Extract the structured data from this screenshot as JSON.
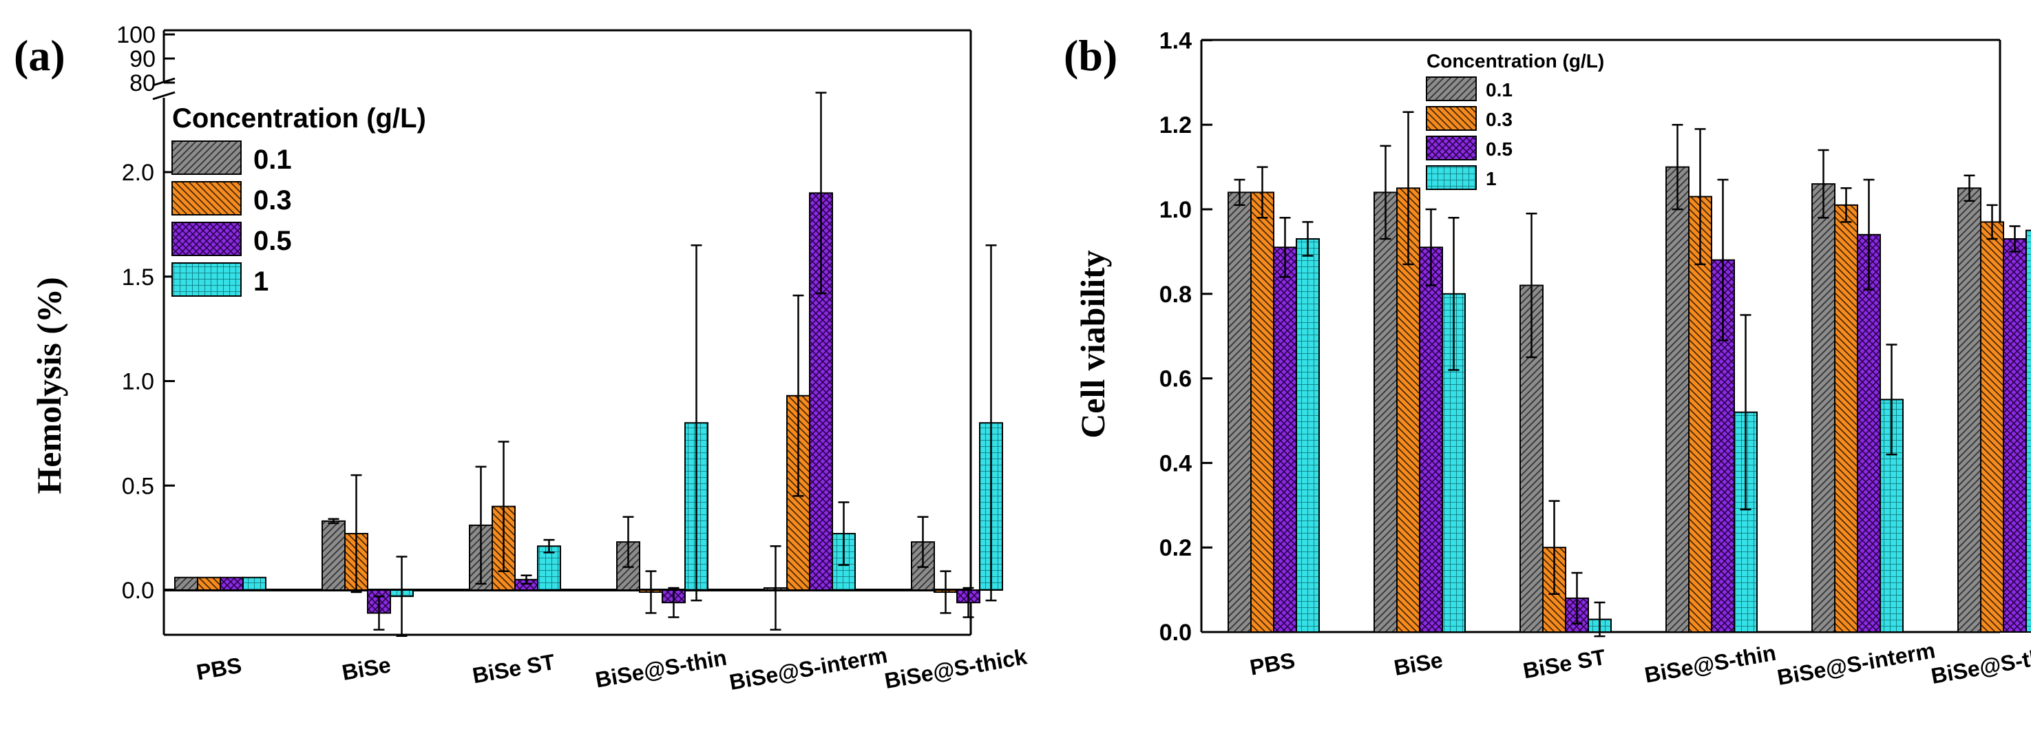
{
  "colors": {
    "0.1": "#8c8c8c",
    "0.3": "#f58a1f",
    "0.5": "#8a2be2",
    "1": "#35e0e6"
  },
  "chart_data": [
    {
      "type": "bar",
      "panel_label": "(a)",
      "title": "",
      "xlabel": "",
      "ylabel": "Hemolysis (%)",
      "ylim": [
        -0.25,
        2.55
      ],
      "break_ticks": [
        "80",
        "90",
        "100"
      ],
      "yticks": [
        "0.0",
        "0.5",
        "1.0",
        "1.5",
        "2.0"
      ],
      "ytick_values": [
        0.0,
        0.5,
        1.0,
        1.5,
        2.0
      ],
      "legend_title": "Concentration (g/L)",
      "legend_position": "top-left",
      "categories": [
        "PBS",
        "BiSe",
        "BiSe ST",
        "BiSe@S-thin",
        "BiSe@S-interm",
        "BiSe@S-thick"
      ],
      "series": [
        {
          "name": "0.1",
          "values": [
            0.06,
            0.33,
            0.31,
            0.23,
            0.01,
            0.23
          ],
          "errors": [
            0.0,
            0.01,
            0.28,
            0.12,
            0.2,
            0.12
          ]
        },
        {
          "name": "0.3",
          "values": [
            0.06,
            0.27,
            0.4,
            -0.01,
            0.93,
            -0.01
          ],
          "errors": [
            0.0,
            0.28,
            0.31,
            0.1,
            0.48,
            0.1
          ]
        },
        {
          "name": "0.5",
          "values": [
            0.06,
            -0.11,
            0.05,
            -0.06,
            1.9,
            -0.06
          ],
          "errors": [
            0.0,
            0.08,
            0.02,
            0.07,
            0.48,
            0.07
          ]
        },
        {
          "name": "1",
          "values": [
            0.06,
            -0.03,
            0.21,
            0.8,
            0.27,
            0.8
          ],
          "errors": [
            0.0,
            0.19,
            0.03,
            0.85,
            0.15,
            0.85
          ]
        }
      ]
    },
    {
      "type": "bar",
      "panel_label": "(b)",
      "title": "",
      "xlabel": "",
      "ylabel": "Cell viability",
      "ylim": [
        0.0,
        1.4
      ],
      "yticks": [
        "0.0",
        "0.2",
        "0.4",
        "0.6",
        "0.8",
        "1.0",
        "1.2",
        "1.4"
      ],
      "ytick_values": [
        0.0,
        0.2,
        0.4,
        0.6,
        0.8,
        1.0,
        1.2,
        1.4
      ],
      "legend_title": "Concentration (g/L)",
      "legend_position": "top-center",
      "categories": [
        "PBS",
        "BiSe",
        "BiSe ST",
        "BiSe@S-thin",
        "BiSe@S-interm",
        "BiSe@S-thick"
      ],
      "series": [
        {
          "name": "0.1",
          "values": [
            1.04,
            1.04,
            0.82,
            1.1,
            1.06,
            1.05
          ],
          "errors": [
            0.03,
            0.11,
            0.17,
            0.1,
            0.08,
            0.03
          ]
        },
        {
          "name": "0.3",
          "values": [
            1.04,
            1.05,
            0.2,
            1.03,
            1.01,
            0.97
          ],
          "errors": [
            0.06,
            0.18,
            0.11,
            0.16,
            0.04,
            0.04
          ]
        },
        {
          "name": "0.5",
          "values": [
            0.91,
            0.91,
            0.08,
            0.88,
            0.94,
            0.93
          ],
          "errors": [
            0.07,
            0.09,
            0.06,
            0.19,
            0.13,
            0.03
          ]
        },
        {
          "name": "1",
          "values": [
            0.93,
            0.8,
            0.03,
            0.52,
            0.55,
            0.95
          ],
          "errors": [
            0.04,
            0.18,
            0.04,
            0.23,
            0.13,
            0.06
          ]
        }
      ]
    }
  ]
}
